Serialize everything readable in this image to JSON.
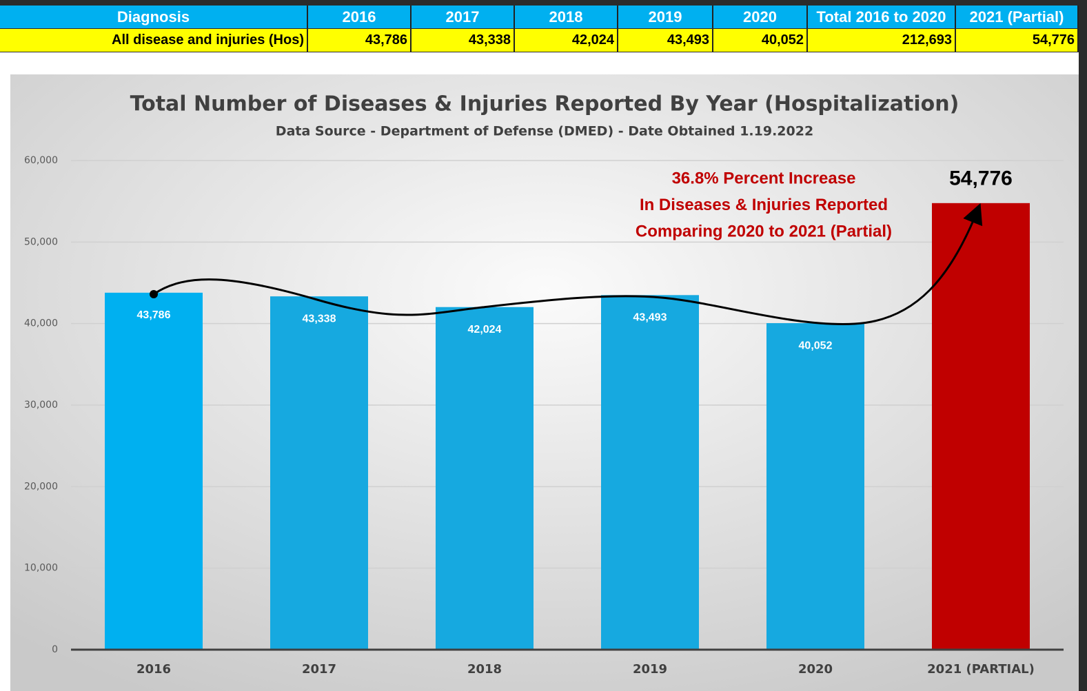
{
  "table": {
    "header": [
      "Diagnosis",
      "2016",
      "2017",
      "2018",
      "2019",
      "2020",
      "Total 2016 to 2020",
      "2021 (Partial)"
    ],
    "rows": [
      [
        "All disease and injuries (Hos)",
        "43,786",
        "43,338",
        "42,024",
        "43,493",
        "40,052",
        "212,693",
        "54,776"
      ]
    ]
  },
  "chart_data": {
    "type": "bar",
    "title": "Total Number of Diseases & Injuries Reported By Year (Hospitalization)",
    "subtitle": "Data Source - Department of Defense (DMED) - Date Obtained 1.19.2022",
    "categories": [
      "2016",
      "2017",
      "2018",
      "2019",
      "2020",
      "2021 (PARTIAL)"
    ],
    "values": [
      43786,
      43338,
      42024,
      43493,
      40052,
      54776
    ],
    "value_labels": [
      "43,786",
      "43,338",
      "42,024",
      "43,493",
      "40,052",
      "54,776"
    ],
    "colors": [
      "#00b0f0",
      "#16a9e0",
      "#16a9e0",
      "#16a9e0",
      "#16a9e0",
      "#c00000"
    ],
    "ylim": [
      0,
      60000
    ],
    "yticks": [
      0,
      {
        "value": 10000,
        "label": "10,000"
      },
      {
        "value": 20000,
        "label": "20,000"
      },
      {
        "value": 30000,
        "label": "30,000"
      },
      {
        "value": 40000,
        "label": "40,000"
      },
      {
        "value": 50000,
        "label": "50,000"
      },
      {
        "value": 60000,
        "label": "60,000"
      }
    ],
    "grid": true,
    "annotation": [
      "36.8% Percent Increase",
      "In Diseases & Injuries Reported",
      "Comparing 2020 to 2021 (Partial)"
    ]
  }
}
